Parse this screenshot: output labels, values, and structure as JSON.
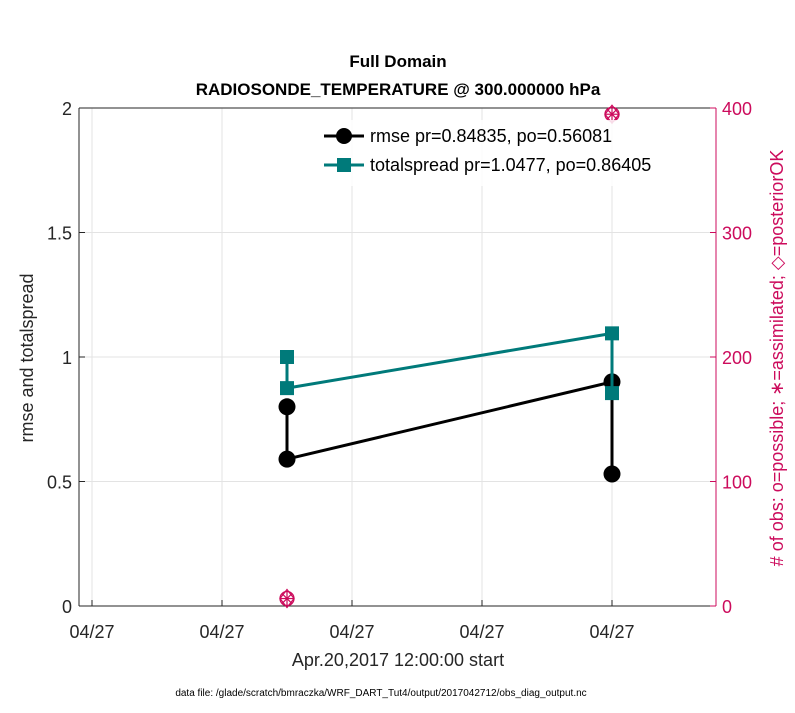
{
  "chart_data": {
    "type": "line",
    "title": "Full Domain",
    "subtitle": "RADIOSONDE_TEMPERATURE @ 300.000000 hPa",
    "xlabel": "Apr.20,2017 12:00:00 start",
    "ylabel": "rmse and totalspread",
    "ylabel_right": "# of obs: o=possible; ∗=assimilated; ◇=posteriorOK",
    "x_tick_labels": [
      "04/27",
      "04/27",
      "04/27",
      "04/27",
      "04/27"
    ],
    "x_ticks": [
      0,
      1,
      2,
      3,
      4
    ],
    "xlim": [
      -0.1,
      4.8
    ],
    "ylim": [
      0,
      2
    ],
    "y_ticks": [
      0,
      0.5,
      1,
      1.5,
      2
    ],
    "y_tick_labels": [
      "0",
      "0.5",
      "1",
      "1.5",
      "2"
    ],
    "ylim_right": [
      0,
      400
    ],
    "y_ticks_right": [
      0,
      100,
      200,
      300,
      400
    ],
    "y_tick_labels_right": [
      "0",
      "100",
      "200",
      "300",
      "400"
    ],
    "grid": true,
    "legend_position": "top-right",
    "series": [
      {
        "name": "rmse pr=0.84835, po=0.56081",
        "color": "#000000",
        "marker": "circle",
        "points": [
          {
            "x": 1.5,
            "y": 0.8
          },
          {
            "x": 1.5,
            "y": 0.59
          },
          {
            "x": 4.0,
            "y": 0.9
          },
          {
            "x": 4.0,
            "y": 0.53
          }
        ]
      },
      {
        "name": "totalspread pr=1.0477, po=0.86405",
        "color": "#007a7a",
        "marker": "square",
        "points": [
          {
            "x": 1.5,
            "y": 1.0
          },
          {
            "x": 1.5,
            "y": 0.875
          },
          {
            "x": 4.0,
            "y": 1.095
          },
          {
            "x": 4.0,
            "y": 0.855
          }
        ]
      }
    ],
    "obs_counts": [
      {
        "x": 1.5,
        "count": 6
      },
      {
        "x": 4.0,
        "count": 395
      }
    ],
    "obs_color": "#cc0b5c",
    "footnote": "data file: /glade/scratch/bmraczka/WRF_DART_Tut4/output/2017042712/obs_diag_output.nc"
  }
}
